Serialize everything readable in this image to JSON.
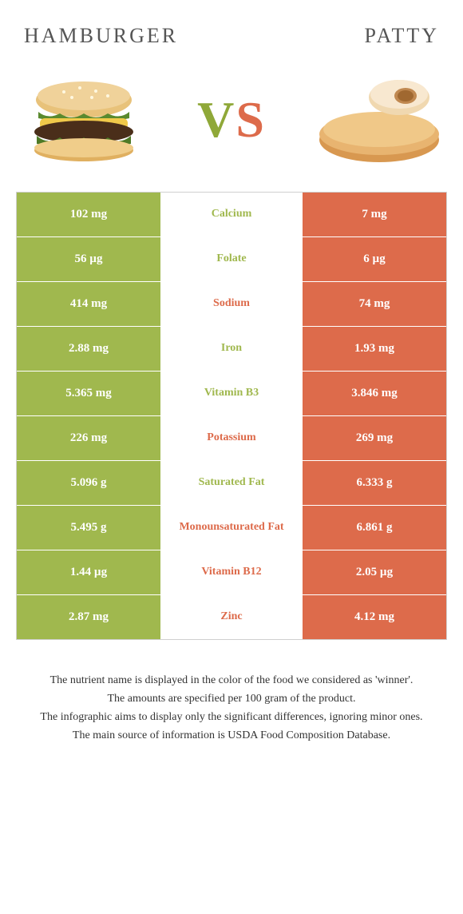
{
  "colors": {
    "left": "#a0b84e",
    "right": "#dd6b4b",
    "mid_bg": "#ffffff",
    "border": "#d0d0d0"
  },
  "foods": {
    "left": {
      "title": "Hamburger"
    },
    "right": {
      "title": "Patty"
    }
  },
  "vs": {
    "v": "V",
    "s": "S"
  },
  "rows": [
    {
      "nutrient": "Calcium",
      "left": "102 mg",
      "right": "7 mg",
      "winner": "left"
    },
    {
      "nutrient": "Folate",
      "left": "56 µg",
      "right": "6 µg",
      "winner": "left"
    },
    {
      "nutrient": "Sodium",
      "left": "414 mg",
      "right": "74 mg",
      "winner": "right"
    },
    {
      "nutrient": "Iron",
      "left": "2.88 mg",
      "right": "1.93 mg",
      "winner": "left"
    },
    {
      "nutrient": "Vitamin B3",
      "left": "5.365 mg",
      "right": "3.846 mg",
      "winner": "left"
    },
    {
      "nutrient": "Potassium",
      "left": "226 mg",
      "right": "269 mg",
      "winner": "right"
    },
    {
      "nutrient": "Saturated Fat",
      "left": "5.096 g",
      "right": "6.333 g",
      "winner": "left"
    },
    {
      "nutrient": "Monounsaturated Fat",
      "left": "5.495 g",
      "right": "6.861 g",
      "winner": "right"
    },
    {
      "nutrient": "Vitamin B12",
      "left": "1.44 µg",
      "right": "2.05 µg",
      "winner": "right"
    },
    {
      "nutrient": "Zinc",
      "left": "2.87 mg",
      "right": "4.12 mg",
      "winner": "right"
    }
  ],
  "notes": [
    "The nutrient name is displayed in the color of the food we considered as 'winner'.",
    "The amounts are specified per 100 gram of the product.",
    "The infographic aims to display only the significant differences, ignoring minor ones.",
    "The main source of information is USDA Food Composition Database."
  ]
}
